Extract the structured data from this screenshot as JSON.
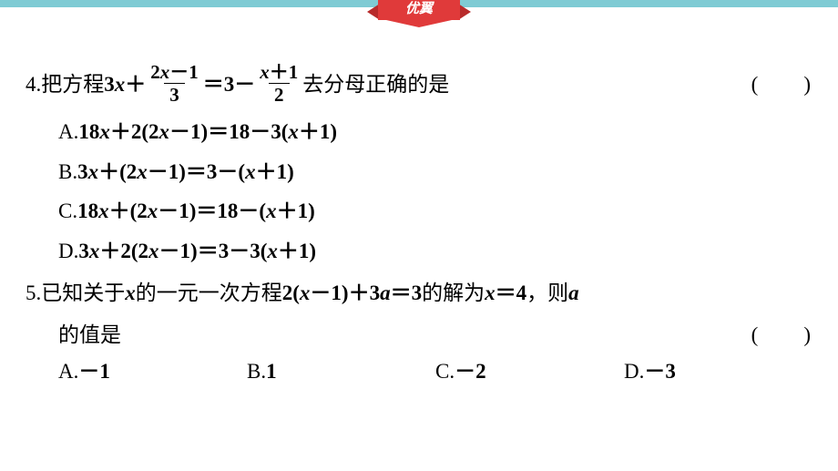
{
  "ribbon": "优翼",
  "q4": {
    "number": "4.",
    "stem_prefix": "把方程 ",
    "eq_left1": "3",
    "eq_left1_var": "x",
    "eq_plus1": "＋",
    "frac1_num_a": "2",
    "frac1_num_var": "x",
    "frac1_num_b": "－1",
    "frac1_den": "3",
    "eq_mid": "＝3－",
    "frac2_num_var": "x",
    "frac2_num_b": "＋1",
    "frac2_den": "2",
    "stem_suffix": "去分母正确的是",
    "options": {
      "A": "A.18x＋2(2x－1)＝18－3(x＋1)",
      "B": "B.3x＋(2x－1)＝3－(x＋1)",
      "C": "C.18x＋(2x－1)＝18－(x＋1)",
      "D": "D.3x＋2(2x－1)＝3－3(x＋1)"
    }
  },
  "q5": {
    "number": "5.",
    "text1": "已知关于 ",
    "var1": "x",
    "text2": " 的一元一次方程 ",
    "eq": "2(x－1)＋3a＝3",
    "text3": " 的解为 ",
    "sol": "x＝4",
    "text4": "，则 ",
    "var2": "a",
    "line2": "的值是",
    "options": {
      "A_lbl": "A.",
      "A_val": "－1",
      "B_lbl": "B.",
      "B_val": "1",
      "C_lbl": "C.",
      "C_val": "－2",
      "D_lbl": "D.",
      "D_val": "－3"
    }
  },
  "paren_l": "(",
  "paren_r": ")"
}
